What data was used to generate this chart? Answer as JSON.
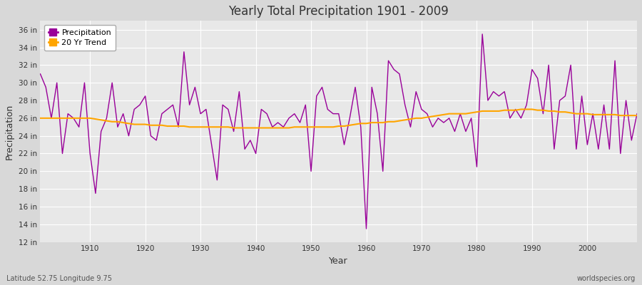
{
  "title": "Yearly Total Precipitation 1901 - 2009",
  "xlabel": "Year",
  "ylabel": "Precipitation",
  "bg_color": "#d8d8d8",
  "plot_bg_color": "#e8e8e8",
  "precip_color": "#990099",
  "trend_color": "#ffa500",
  "legend_labels": [
    "Precipitation",
    "20 Yr Trend"
  ],
  "footer_left": "Latitude 52.75 Longitude 9.75",
  "footer_right": "worldspecies.org",
  "ylim": [
    12,
    37
  ],
  "ytick_vals": [
    12,
    14,
    16,
    18,
    20,
    22,
    24,
    26,
    28,
    30,
    32,
    34,
    36
  ],
  "xticks": [
    1910,
    1920,
    1930,
    1940,
    1950,
    1960,
    1970,
    1980,
    1990,
    2000
  ],
  "years": [
    1901,
    1902,
    1903,
    1904,
    1905,
    1906,
    1907,
    1908,
    1909,
    1910,
    1911,
    1912,
    1913,
    1914,
    1915,
    1916,
    1917,
    1918,
    1919,
    1920,
    1921,
    1922,
    1923,
    1924,
    1925,
    1926,
    1927,
    1928,
    1929,
    1930,
    1931,
    1932,
    1933,
    1934,
    1935,
    1936,
    1937,
    1938,
    1939,
    1940,
    1941,
    1942,
    1943,
    1944,
    1945,
    1946,
    1947,
    1948,
    1949,
    1950,
    1951,
    1952,
    1953,
    1954,
    1955,
    1956,
    1957,
    1958,
    1959,
    1960,
    1961,
    1962,
    1963,
    1964,
    1965,
    1966,
    1967,
    1968,
    1969,
    1970,
    1971,
    1972,
    1973,
    1974,
    1975,
    1976,
    1977,
    1978,
    1979,
    1980,
    1981,
    1982,
    1983,
    1984,
    1985,
    1986,
    1987,
    1988,
    1989,
    1990,
    1991,
    1992,
    1993,
    1994,
    1995,
    1996,
    1997,
    1998,
    1999,
    2000,
    2001,
    2002,
    2003,
    2004,
    2005,
    2006,
    2007,
    2008,
    2009
  ],
  "precip": [
    31.0,
    29.5,
    26.0,
    30.0,
    22.0,
    26.5,
    26.0,
    25.0,
    30.0,
    22.0,
    17.5,
    24.5,
    26.0,
    30.0,
    25.0,
    26.5,
    24.0,
    27.0,
    27.5,
    28.5,
    24.0,
    23.5,
    26.5,
    27.0,
    27.5,
    25.0,
    33.5,
    27.5,
    29.5,
    26.5,
    27.0,
    23.0,
    19.0,
    27.5,
    27.0,
    24.5,
    29.0,
    22.5,
    23.5,
    22.0,
    27.0,
    26.5,
    25.0,
    25.5,
    25.0,
    26.0,
    26.5,
    25.5,
    27.5,
    20.0,
    28.5,
    29.5,
    27.0,
    26.5,
    26.5,
    23.0,
    26.0,
    29.5,
    25.0,
    13.5,
    29.5,
    26.5,
    20.0,
    32.5,
    31.5,
    31.0,
    27.5,
    25.0,
    29.0,
    27.0,
    26.5,
    25.0,
    26.0,
    25.5,
    26.0,
    24.5,
    26.5,
    24.5,
    26.0,
    20.5,
    35.5,
    28.0,
    29.0,
    28.5,
    29.0,
    26.0,
    27.0,
    26.0,
    27.5,
    31.5,
    30.5,
    26.5,
    32.0,
    22.5,
    28.0,
    28.5,
    32.0,
    22.5,
    28.5,
    23.0,
    26.5,
    22.5,
    27.5,
    22.5,
    32.5,
    22.0,
    28.0,
    23.5,
    26.5
  ],
  "trend": [
    26.0,
    26.0,
    26.0,
    26.0,
    26.0,
    26.0,
    26.0,
    26.0,
    26.0,
    26.0,
    25.9,
    25.8,
    25.7,
    25.6,
    25.6,
    25.5,
    25.4,
    25.3,
    25.3,
    25.3,
    25.2,
    25.2,
    25.2,
    25.1,
    25.1,
    25.1,
    25.1,
    25.0,
    25.0,
    25.0,
    25.0,
    25.0,
    25.0,
    25.0,
    25.0,
    24.9,
    24.9,
    24.9,
    24.9,
    24.9,
    24.9,
    24.9,
    24.9,
    24.9,
    24.9,
    24.9,
    25.0,
    25.0,
    25.0,
    25.0,
    25.0,
    25.0,
    25.0,
    25.0,
    25.1,
    25.1,
    25.2,
    25.3,
    25.4,
    25.4,
    25.5,
    25.5,
    25.5,
    25.6,
    25.6,
    25.7,
    25.8,
    25.9,
    26.0,
    26.0,
    26.1,
    26.2,
    26.3,
    26.4,
    26.5,
    26.5,
    26.5,
    26.5,
    26.6,
    26.7,
    26.8,
    26.8,
    26.8,
    26.8,
    26.9,
    26.9,
    26.9,
    27.0,
    27.0,
    27.0,
    26.9,
    26.9,
    26.8,
    26.8,
    26.7,
    26.7,
    26.6,
    26.5,
    26.5,
    26.5,
    26.4,
    26.4,
    26.4,
    26.4,
    26.4,
    26.3,
    26.3,
    26.3,
    26.3
  ]
}
